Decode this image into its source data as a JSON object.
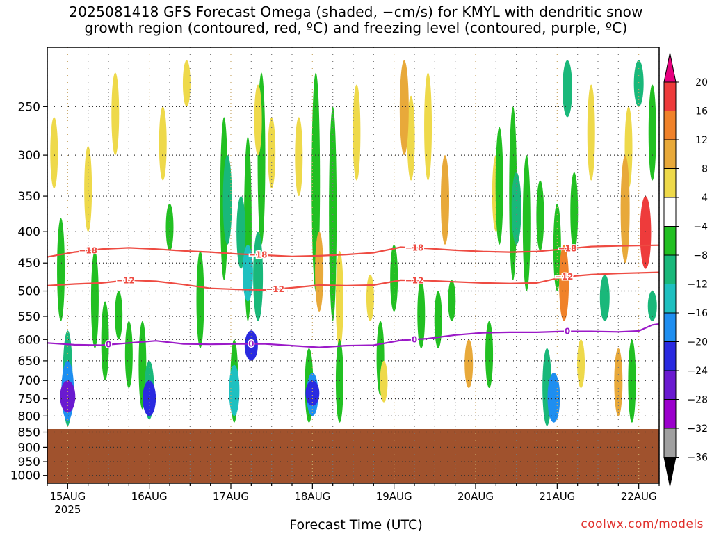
{
  "title": {
    "line1": "2025081418 GFS Forecast Omega (shaded, −cm/s) for KMYL with dendritic snow",
    "line2": "growth region (contoured, red, ºC) and freezing level (contoured, purple, ºC)"
  },
  "credit": "coolwx.com/models",
  "chart_data": {
    "type": "heatmap",
    "xlabel": "Forecast Time (UTC)",
    "x_ticks": [
      {
        "label": "15AUG",
        "sub": "2025",
        "hour": 6
      },
      {
        "label": "16AUG",
        "sub": "",
        "hour": 30
      },
      {
        "label": "17AUG",
        "sub": "",
        "hour": 54
      },
      {
        "label": "18AUG",
        "sub": "",
        "hour": 78
      },
      {
        "label": "19AUG",
        "sub": "",
        "hour": 102
      },
      {
        "label": "20AUG",
        "sub": "",
        "hour": 126
      },
      {
        "label": "21AUG",
        "sub": "",
        "hour": 150
      },
      {
        "label": "22AUG",
        "sub": "",
        "hour": 174
      }
    ],
    "xlim_hours": [
      0,
      180
    ],
    "y_ticks": [
      "250",
      "300",
      "350",
      "400",
      "450",
      "500",
      "550",
      "600",
      "650",
      "700",
      "750",
      "800",
      "850",
      "900",
      "950",
      "1000"
    ],
    "y_tick_values": [
      250,
      300,
      350,
      400,
      450,
      500,
      550,
      600,
      650,
      700,
      750,
      800,
      850,
      900,
      950,
      1000
    ],
    "ylim_hpa": [
      200,
      1030
    ],
    "y_scale": "log-pressure",
    "grid": true,
    "ground_top_hpa": 840,
    "ground_color": "#a0522d",
    "colorbar": {
      "labels": [
        "20",
        "16",
        "12",
        "8",
        "4",
        "−4",
        "−8",
        "−12",
        "−16",
        "−20",
        "−24",
        "−28",
        "−32",
        "−36"
      ],
      "bins": [
        {
          "from": 20,
          "to": 24,
          "color": "#e6007e"
        },
        {
          "from": 16,
          "to": 20,
          "color": "#ee3b3b"
        },
        {
          "from": 12,
          "to": 16,
          "color": "#f0822a"
        },
        {
          "from": 8,
          "to": 12,
          "color": "#e8a93a"
        },
        {
          "from": 4,
          "to": 8,
          "color": "#eed94a"
        },
        {
          "from": -4,
          "to": 4,
          "color": "#ffffff"
        },
        {
          "from": -8,
          "to": -4,
          "color": "#22c022"
        },
        {
          "from": -12,
          "to": -8,
          "color": "#19b87a"
        },
        {
          "from": -16,
          "to": -12,
          "color": "#1ec0c0"
        },
        {
          "from": -20,
          "to": -16,
          "color": "#1e8ef0"
        },
        {
          "from": -24,
          "to": -20,
          "color": "#2a2ae0"
        },
        {
          "from": -28,
          "to": -24,
          "color": "#6a1ad0"
        },
        {
          "from": -32,
          "to": -28,
          "color": "#9b00cc"
        },
        {
          "from": -36,
          "to": -32,
          "color": "#a0a0a0"
        },
        {
          "from": -40,
          "to": -36,
          "color": "#000000"
        }
      ]
    },
    "omega_cells": [
      {
        "hour": 6,
        "p_top": 580,
        "p_bot": 830,
        "value": -12
      },
      {
        "hour": 6,
        "p_top": 650,
        "p_bot": 815,
        "value": -20
      },
      {
        "hour": 6,
        "p_top": 700,
        "p_bot": 790,
        "value": -28
      },
      {
        "hour": 4,
        "p_top": 380,
        "p_bot": 560,
        "value": -6
      },
      {
        "hour": 2,
        "p_top": 260,
        "p_bot": 340,
        "value": 6
      },
      {
        "hour": 12,
        "p_top": 290,
        "p_bot": 400,
        "value": 6
      },
      {
        "hour": 14,
        "p_top": 430,
        "p_bot": 620,
        "value": -6
      },
      {
        "hour": 17,
        "p_top": 520,
        "p_bot": 700,
        "value": -6
      },
      {
        "hour": 21,
        "p_top": 500,
        "p_bot": 600,
        "value": -6
      },
      {
        "hour": 20,
        "p_top": 220,
        "p_bot": 300,
        "value": 6
      },
      {
        "hour": 24,
        "p_top": 560,
        "p_bot": 720,
        "value": -6
      },
      {
        "hour": 28,
        "p_top": 560,
        "p_bot": 780,
        "value": -6
      },
      {
        "hour": 30,
        "p_top": 650,
        "p_bot": 810,
        "value": -12
      },
      {
        "hour": 30,
        "p_top": 700,
        "p_bot": 800,
        "value": -22
      },
      {
        "hour": 34,
        "p_top": 250,
        "p_bot": 330,
        "value": 6
      },
      {
        "hour": 36,
        "p_top": 360,
        "p_bot": 430,
        "value": -6
      },
      {
        "hour": 41,
        "p_top": 210,
        "p_bot": 250,
        "value": 6
      },
      {
        "hour": 45,
        "p_top": 430,
        "p_bot": 620,
        "value": -6
      },
      {
        "hour": 52,
        "p_top": 260,
        "p_bot": 480,
        "value": -6
      },
      {
        "hour": 53,
        "p_top": 300,
        "p_bot": 420,
        "value": -10
      },
      {
        "hour": 55,
        "p_top": 600,
        "p_bot": 820,
        "value": -6
      },
      {
        "hour": 55,
        "p_top": 660,
        "p_bot": 800,
        "value": -14
      },
      {
        "hour": 57,
        "p_top": 350,
        "p_bot": 460,
        "value": -10
      },
      {
        "hour": 59,
        "p_top": 280,
        "p_bot": 560,
        "value": -6
      },
      {
        "hour": 59,
        "p_top": 420,
        "p_bot": 520,
        "value": -14
      },
      {
        "hour": 60,
        "p_top": 580,
        "p_bot": 650,
        "value": -22
      },
      {
        "hour": 62,
        "p_top": 400,
        "p_bot": 560,
        "value": -12
      },
      {
        "hour": 63,
        "p_top": 220,
        "p_bot": 420,
        "value": -6
      },
      {
        "hour": 62,
        "p_top": 230,
        "p_bot": 300,
        "value": 6
      },
      {
        "hour": 66,
        "p_top": 260,
        "p_bot": 340,
        "value": 6
      },
      {
        "hour": 74,
        "p_top": 260,
        "p_bot": 350,
        "value": 6
      },
      {
        "hour": 77,
        "p_top": 620,
        "p_bot": 820,
        "value": -8
      },
      {
        "hour": 78,
        "p_top": 680,
        "p_bot": 800,
        "value": -18
      },
      {
        "hour": 78,
        "p_top": 700,
        "p_bot": 770,
        "value": -24
      },
      {
        "hour": 79,
        "p_top": 220,
        "p_bot": 500,
        "value": -8
      },
      {
        "hour": 80,
        "p_top": 400,
        "p_bot": 540,
        "value": 8
      },
      {
        "hour": 84,
        "p_top": 250,
        "p_bot": 560,
        "value": -6
      },
      {
        "hour": 86,
        "p_top": 430,
        "p_bot": 620,
        "value": 6
      },
      {
        "hour": 86,
        "p_top": 600,
        "p_bot": 820,
        "value": -6
      },
      {
        "hour": 91,
        "p_top": 230,
        "p_bot": 330,
        "value": 6
      },
      {
        "hour": 95,
        "p_top": 470,
        "p_bot": 560,
        "value": 6
      },
      {
        "hour": 98,
        "p_top": 560,
        "p_bot": 740,
        "value": -6
      },
      {
        "hour": 99,
        "p_top": 650,
        "p_bot": 760,
        "value": 6
      },
      {
        "hour": 102,
        "p_top": 420,
        "p_bot": 540,
        "value": -6
      },
      {
        "hour": 105,
        "p_top": 210,
        "p_bot": 300,
        "value": 10
      },
      {
        "hour": 107,
        "p_top": 240,
        "p_bot": 330,
        "value": 6
      },
      {
        "hour": 110,
        "p_top": 480,
        "p_bot": 620,
        "value": -6
      },
      {
        "hour": 112,
        "p_top": 220,
        "p_bot": 330,
        "value": 6
      },
      {
        "hour": 115,
        "p_top": 500,
        "p_bot": 620,
        "value": -6
      },
      {
        "hour": 117,
        "p_top": 300,
        "p_bot": 420,
        "value": 8
      },
      {
        "hour": 119,
        "p_top": 480,
        "p_bot": 560,
        "value": -6
      },
      {
        "hour": 124,
        "p_top": 600,
        "p_bot": 720,
        "value": 8
      },
      {
        "hour": 130,
        "p_top": 560,
        "p_bot": 720,
        "value": -6
      },
      {
        "hour": 132,
        "p_top": 300,
        "p_bot": 400,
        "value": 6
      },
      {
        "hour": 133,
        "p_top": 270,
        "p_bot": 420,
        "value": -6
      },
      {
        "hour": 137,
        "p_top": 250,
        "p_bot": 480,
        "value": -6
      },
      {
        "hour": 138,
        "p_top": 320,
        "p_bot": 420,
        "value": -12
      },
      {
        "hour": 141,
        "p_top": 300,
        "p_bot": 500,
        "value": -6
      },
      {
        "hour": 145,
        "p_top": 330,
        "p_bot": 430,
        "value": -6
      },
      {
        "hour": 147,
        "p_top": 620,
        "p_bot": 830,
        "value": -10
      },
      {
        "hour": 149,
        "p_top": 680,
        "p_bot": 820,
        "value": -20
      },
      {
        "hour": 150,
        "p_top": 360,
        "p_bot": 500,
        "value": -6
      },
      {
        "hour": 152,
        "p_top": 420,
        "p_bot": 560,
        "value": 12
      },
      {
        "hour": 153,
        "p_top": 210,
        "p_bot": 260,
        "value": -12
      },
      {
        "hour": 155,
        "p_top": 320,
        "p_bot": 430,
        "value": -6
      },
      {
        "hour": 157,
        "p_top": 600,
        "p_bot": 720,
        "value": 6
      },
      {
        "hour": 160,
        "p_top": 230,
        "p_bot": 330,
        "value": 6
      },
      {
        "hour": 164,
        "p_top": 470,
        "p_bot": 560,
        "value": -12
      },
      {
        "hour": 168,
        "p_top": 620,
        "p_bot": 800,
        "value": 8
      },
      {
        "hour": 170,
        "p_top": 300,
        "p_bot": 450,
        "value": 10
      },
      {
        "hour": 171,
        "p_top": 250,
        "p_bot": 340,
        "value": 6
      },
      {
        "hour": 172,
        "p_top": 600,
        "p_bot": 820,
        "value": -6
      },
      {
        "hour": 174,
        "p_top": 210,
        "p_bot": 250,
        "value": -12
      },
      {
        "hour": 176,
        "p_top": 350,
        "p_bot": 460,
        "value": 16
      },
      {
        "hour": 178,
        "p_top": 230,
        "p_bot": 330,
        "value": -6
      },
      {
        "hour": 178,
        "p_top": 500,
        "p_bot": 560,
        "value": -10
      }
    ],
    "contours": [
      {
        "label": "−18",
        "color": "#ee4b42",
        "label_hours": [
          12,
          62,
          108,
          153
        ],
        "points": [
          [
            0,
            440
          ],
          [
            8,
            432
          ],
          [
            16,
            427
          ],
          [
            24,
            425
          ],
          [
            32,
            427
          ],
          [
            40,
            430
          ],
          [
            48,
            432
          ],
          [
            56,
            435
          ],
          [
            64,
            437
          ],
          [
            72,
            439
          ],
          [
            80,
            438
          ],
          [
            88,
            436
          ],
          [
            96,
            433
          ],
          [
            104,
            424
          ],
          [
            112,
            426
          ],
          [
            120,
            429
          ],
          [
            128,
            431
          ],
          [
            136,
            432
          ],
          [
            144,
            431
          ],
          [
            152,
            427
          ],
          [
            160,
            423
          ],
          [
            168,
            422
          ],
          [
            180,
            421
          ]
        ]
      },
      {
        "label": "−12",
        "color": "#ee4b42",
        "label_hours": [
          23,
          67,
          108,
          152
        ],
        "points": [
          [
            0,
            490
          ],
          [
            8,
            487
          ],
          [
            16,
            485
          ],
          [
            24,
            480
          ],
          [
            32,
            482
          ],
          [
            40,
            488
          ],
          [
            48,
            495
          ],
          [
            56,
            497
          ],
          [
            64,
            498
          ],
          [
            72,
            494
          ],
          [
            80,
            489
          ],
          [
            88,
            490
          ],
          [
            96,
            489
          ],
          [
            104,
            480
          ],
          [
            112,
            481
          ],
          [
            120,
            483
          ],
          [
            128,
            485
          ],
          [
            136,
            486
          ],
          [
            144,
            485
          ],
          [
            152,
            474
          ],
          [
            160,
            470
          ],
          [
            168,
            468
          ],
          [
            180,
            466
          ]
        ]
      },
      {
        "label": "0",
        "color": "#9b19c8",
        "label_hours": [
          18,
          60,
          108,
          153
        ],
        "points": [
          [
            0,
            608
          ],
          [
            8,
            612
          ],
          [
            16,
            613
          ],
          [
            24,
            608
          ],
          [
            32,
            603
          ],
          [
            40,
            610
          ],
          [
            48,
            611
          ],
          [
            56,
            610
          ],
          [
            64,
            610
          ],
          [
            72,
            614
          ],
          [
            80,
            618
          ],
          [
            88,
            614
          ],
          [
            96,
            613
          ],
          [
            104,
            602
          ],
          [
            112,
            598
          ],
          [
            120,
            590
          ],
          [
            128,
            585
          ],
          [
            136,
            584
          ],
          [
            144,
            584
          ],
          [
            152,
            582
          ],
          [
            160,
            582
          ],
          [
            168,
            583
          ],
          [
            174,
            581
          ],
          [
            178,
            568
          ],
          [
            180,
            566
          ]
        ]
      }
    ]
  }
}
